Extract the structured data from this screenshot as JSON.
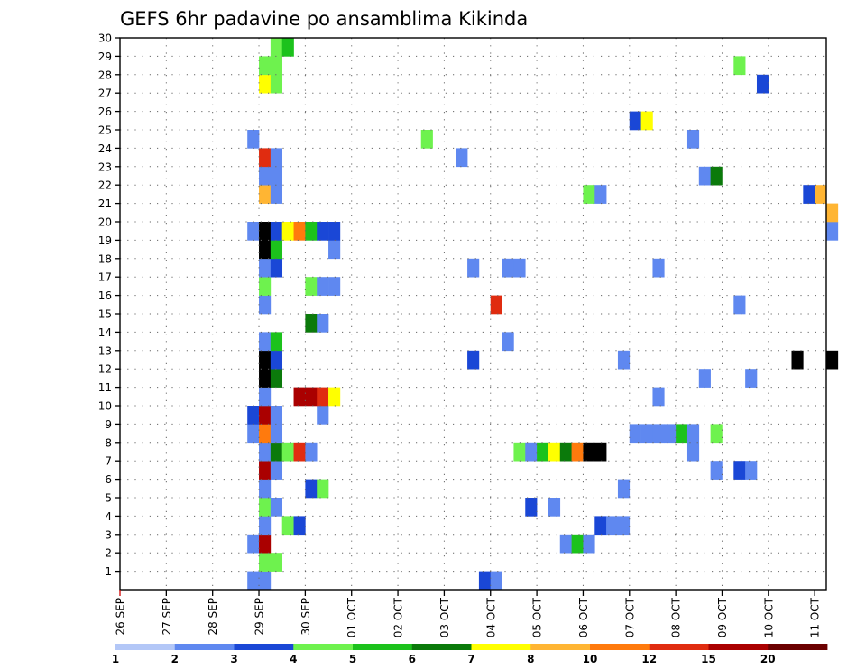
{
  "chart_data": {
    "type": "heatmap",
    "title": "GEFS 6hr padavine po ansamblima Kikinda",
    "xlabel": "",
    "ylabel": "",
    "x_tick_labels": [
      "26 SEP",
      "27 SEP",
      "28 SEP",
      "29 SEP",
      "30 SEP",
      "01 OCT",
      "02 OCT",
      "03 OCT",
      "04 OCT",
      "05 OCT",
      "06 OCT",
      "07 OCT",
      "08 OCT",
      "09 OCT",
      "10 OCT",
      "11 OCT"
    ],
    "x_range_steps": [
      0,
      61
    ],
    "steps_per_day": 4,
    "y_tick_labels": [
      "1",
      "2",
      "3",
      "4",
      "5",
      "6",
      "7",
      "8",
      "9",
      "10",
      "11",
      "12",
      "13",
      "14",
      "15",
      "16",
      "17",
      "18",
      "19",
      "20",
      "21",
      "22",
      "23",
      "24",
      "25",
      "26",
      "27",
      "28",
      "29",
      "30"
    ],
    "y_range": [
      0,
      30
    ],
    "grid": true,
    "colorbar": {
      "placement": "bottom",
      "labels": [
        "1",
        "2",
        "3",
        "4",
        "5",
        "6",
        "7",
        "8",
        "10",
        "12",
        "15",
        "20"
      ],
      "colors": [
        "#b3c7f7",
        "#5f88f0",
        "#1a47d6",
        "#6ef24e",
        "#1cc21c",
        "#0b7a0b",
        "#ffff00",
        "#ffb533",
        "#ff7a0d",
        "#e02c10",
        "#aa0000",
        "#6b0000"
      ]
    },
    "cells": [
      [
        11,
        0,
        1
      ],
      [
        12,
        0,
        1
      ],
      [
        31,
        0,
        2
      ],
      [
        32,
        0,
        1
      ],
      [
        12,
        1,
        3
      ],
      [
        13,
        1,
        3
      ],
      [
        11,
        2,
        1
      ],
      [
        12,
        2,
        10
      ],
      [
        38,
        2,
        1
      ],
      [
        39,
        2,
        4
      ],
      [
        40,
        2,
        1
      ],
      [
        12,
        3,
        1
      ],
      [
        14,
        3,
        3
      ],
      [
        15,
        3,
        2
      ],
      [
        41,
        3,
        2
      ],
      [
        42,
        3,
        1
      ],
      [
        43,
        3,
        1
      ],
      [
        12,
        4,
        3
      ],
      [
        13,
        4,
        1
      ],
      [
        35,
        4,
        2
      ],
      [
        37,
        4,
        1
      ],
      [
        12,
        5,
        1
      ],
      [
        16,
        5,
        2
      ],
      [
        17,
        5,
        3
      ],
      [
        43,
        5,
        1
      ],
      [
        12,
        6,
        10
      ],
      [
        13,
        6,
        1
      ],
      [
        51,
        6,
        1
      ],
      [
        53,
        6,
        2
      ],
      [
        54,
        6,
        1
      ],
      [
        12,
        7,
        1
      ],
      [
        13,
        7,
        5
      ],
      [
        14,
        7,
        3
      ],
      [
        15,
        7,
        9
      ],
      [
        16,
        7,
        1
      ],
      [
        34,
        7,
        3
      ],
      [
        35,
        7,
        1
      ],
      [
        36,
        7,
        4
      ],
      [
        37,
        7,
        6
      ],
      [
        38,
        7,
        5
      ],
      [
        39,
        7,
        8
      ],
      [
        40,
        7,
        12
      ],
      [
        41,
        7,
        12
      ],
      [
        49,
        7,
        1
      ],
      [
        11,
        8,
        1
      ],
      [
        12,
        8,
        8
      ],
      [
        13,
        8,
        1
      ],
      [
        44,
        8,
        1
      ],
      [
        45,
        8,
        1
      ],
      [
        46,
        8,
        1
      ],
      [
        47,
        8,
        1
      ],
      [
        48,
        8,
        4
      ],
      [
        49,
        8,
        1
      ],
      [
        51,
        8,
        3
      ],
      [
        11,
        9,
        2
      ],
      [
        12,
        9,
        10
      ],
      [
        13,
        9,
        1
      ],
      [
        17,
        9,
        1
      ],
      [
        12,
        10,
        1
      ],
      [
        15,
        10,
        10
      ],
      [
        16,
        10,
        10
      ],
      [
        17,
        10,
        9
      ],
      [
        18,
        10,
        6
      ],
      [
        46,
        10,
        1
      ],
      [
        12,
        11,
        15
      ],
      [
        13,
        11,
        5
      ],
      [
        50,
        11,
        1
      ],
      [
        54,
        11,
        1
      ],
      [
        12,
        12,
        15
      ],
      [
        13,
        12,
        2
      ],
      [
        30,
        12,
        2
      ],
      [
        43,
        12,
        1
      ],
      [
        58,
        12,
        15
      ],
      [
        61,
        12,
        15
      ],
      [
        12,
        13,
        1
      ],
      [
        13,
        13,
        4
      ],
      [
        33,
        13,
        1
      ],
      [
        16,
        14,
        5
      ],
      [
        17,
        14,
        1
      ],
      [
        12,
        15,
        1
      ],
      [
        32,
        15,
        9
      ],
      [
        53,
        15,
        1
      ],
      [
        12,
        16,
        3
      ],
      [
        16,
        16,
        3
      ],
      [
        17,
        16,
        1
      ],
      [
        18,
        16,
        1
      ],
      [
        12,
        17,
        1
      ],
      [
        13,
        17,
        2
      ],
      [
        30,
        17,
        1
      ],
      [
        33,
        17,
        1
      ],
      [
        34,
        17,
        1
      ],
      [
        46,
        17,
        1
      ],
      [
        12,
        18,
        15
      ],
      [
        13,
        18,
        4
      ],
      [
        18,
        18,
        1
      ],
      [
        11,
        19,
        1
      ],
      [
        12,
        19,
        12
      ],
      [
        13,
        19,
        2
      ],
      [
        14,
        19,
        6
      ],
      [
        15,
        19,
        8
      ],
      [
        16,
        19,
        4
      ],
      [
        17,
        19,
        2
      ],
      [
        18,
        19,
        2
      ],
      [
        61,
        19,
        1
      ],
      [
        61,
        20,
        7
      ],
      [
        12,
        21,
        7
      ],
      [
        13,
        21,
        1
      ],
      [
        40,
        21,
        3
      ],
      [
        41,
        21,
        1
      ],
      [
        59,
        21,
        2
      ],
      [
        60,
        21,
        7
      ],
      [
        12,
        22,
        1
      ],
      [
        13,
        22,
        1
      ],
      [
        50,
        22,
        1
      ],
      [
        51,
        22,
        5
      ],
      [
        12,
        23,
        9
      ],
      [
        13,
        23,
        1
      ],
      [
        29,
        23,
        1
      ],
      [
        11,
        24,
        1
      ],
      [
        26,
        24,
        3
      ],
      [
        49,
        24,
        1
      ],
      [
        44,
        25,
        2
      ],
      [
        45,
        25,
        6
      ],
      [
        12,
        27,
        6
      ],
      [
        13,
        27,
        3
      ],
      [
        55,
        27,
        2
      ],
      [
        12,
        28,
        3
      ],
      [
        13,
        28,
        3
      ],
      [
        53,
        28,
        3
      ],
      [
        13,
        29,
        3
      ],
      [
        14,
        29,
        4
      ]
    ]
  }
}
